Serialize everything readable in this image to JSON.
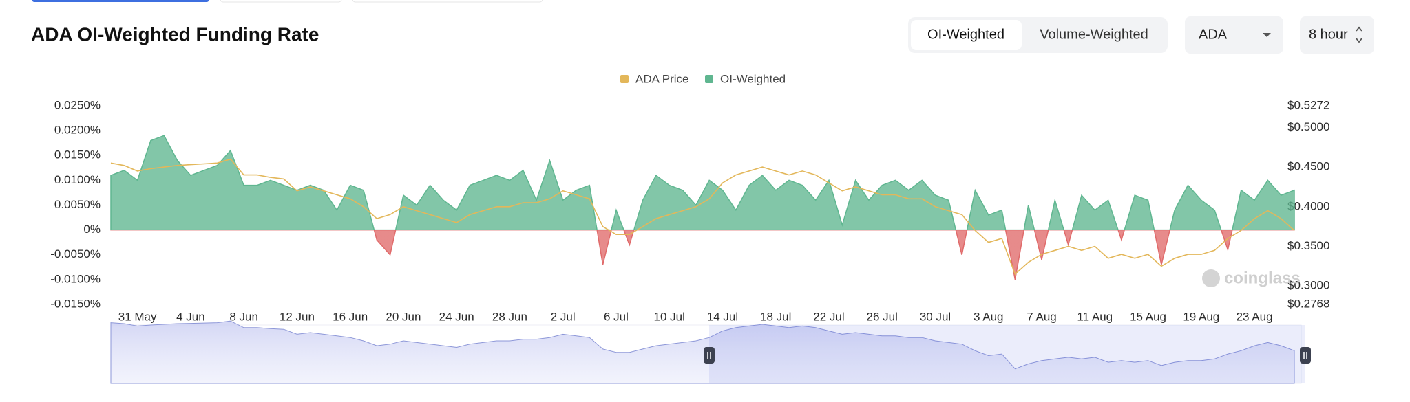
{
  "ui": {
    "title": "ADA OI-Weighted Funding Rate",
    "toggle": [
      "OI-Weighted",
      "Volume-Weighted"
    ],
    "symbol": "ADA",
    "interval": "8 hour",
    "watermark": "coinglass"
  },
  "chart_data": {
    "type": "area",
    "legend": "top",
    "categories": [
      null,
      null,
      "31 May",
      null,
      null,
      null,
      "4 Jun",
      null,
      null,
      null,
      "8 Jun",
      null,
      null,
      null,
      "12 Jun",
      null,
      null,
      null,
      "16 Jun",
      null,
      null,
      null,
      "20 Jun",
      null,
      null,
      null,
      "24 Jun",
      null,
      null,
      null,
      "28 Jun",
      null,
      null,
      null,
      "2 Jul",
      null,
      null,
      null,
      "6 Jul",
      null,
      null,
      null,
      "10 Jul",
      null,
      null,
      null,
      "14 Jul",
      null,
      null,
      null,
      "18 Jul",
      null,
      null,
      null,
      "22 Jul",
      null,
      null,
      null,
      "26 Jul",
      null,
      null,
      null,
      "30 Jul",
      null,
      null,
      null,
      "3 Aug",
      null,
      null,
      null,
      "7 Aug",
      null,
      null,
      null,
      "11 Aug",
      null,
      null,
      null,
      "15 Aug",
      null,
      null,
      null,
      "19 Aug",
      null,
      null,
      null,
      "23 Aug",
      null,
      null,
      null
    ],
    "series": [
      {
        "name": "ADA Price",
        "color": "#e3b75a",
        "type": "line",
        "axis": "y2",
        "values": [
          0.455,
          0.452,
          0.445,
          0.448,
          0.45,
          0.452,
          0.453,
          0.454,
          0.455,
          0.46,
          0.44,
          0.44,
          0.437,
          0.435,
          0.42,
          0.425,
          0.42,
          0.415,
          0.41,
          0.4,
          0.385,
          0.39,
          0.4,
          0.395,
          0.39,
          0.385,
          0.38,
          0.39,
          0.395,
          0.4,
          0.4,
          0.405,
          0.405,
          0.41,
          0.42,
          0.415,
          0.41,
          0.375,
          0.365,
          0.365,
          0.375,
          0.385,
          0.39,
          0.395,
          0.4,
          0.41,
          0.43,
          0.44,
          0.445,
          0.45,
          0.445,
          0.44,
          0.445,
          0.44,
          0.43,
          0.42,
          0.425,
          0.42,
          0.415,
          0.415,
          0.41,
          0.41,
          0.4,
          0.395,
          0.39,
          0.37,
          0.355,
          0.36,
          0.315,
          0.33,
          0.34,
          0.345,
          0.35,
          0.345,
          0.35,
          0.335,
          0.34,
          0.335,
          0.34,
          0.325,
          0.335,
          0.34,
          0.34,
          0.345,
          0.36,
          0.37,
          0.385,
          0.395,
          0.385,
          0.37
        ]
      },
      {
        "name": "OI-Weighted",
        "color": "#5fb690",
        "negative_color": "#e06a6a",
        "type": "area",
        "values": [
          0.011,
          0.012,
          0.01,
          0.018,
          0.019,
          0.014,
          0.011,
          0.012,
          0.013,
          0.016,
          0.009,
          0.009,
          0.01,
          0.009,
          0.008,
          0.009,
          0.008,
          0.004,
          0.009,
          0.008,
          -0.002,
          -0.005,
          0.007,
          0.005,
          0.009,
          0.006,
          0.004,
          0.009,
          0.01,
          0.011,
          0.01,
          0.012,
          0.006,
          0.014,
          0.006,
          0.008,
          0.009,
          -0.007,
          0.004,
          -0.003,
          0.006,
          0.011,
          0.009,
          0.008,
          0.005,
          0.01,
          0.008,
          0.004,
          0.009,
          0.011,
          0.008,
          0.01,
          0.009,
          0.006,
          0.01,
          0.001,
          0.01,
          0.006,
          0.009,
          0.01,
          0.008,
          0.01,
          0.007,
          0.006,
          -0.005,
          0.008,
          0.003,
          0.004,
          -0.01,
          0.005,
          -0.006,
          0.006,
          -0.003,
          0.007,
          0.004,
          0.006,
          -0.002,
          0.007,
          0.006,
          -0.007,
          0.004,
          0.009,
          0.006,
          0.004,
          -0.004,
          0.008,
          0.006,
          0.01,
          0.007,
          0.008
        ]
      }
    ],
    "ylim": [
      -0.015,
      0.025
    ],
    "yticks": [
      {
        "value": 0.025,
        "label": "0.0250%"
      },
      {
        "value": 0.02,
        "label": "0.0200%"
      },
      {
        "value": 0.015,
        "label": "0.0150%"
      },
      {
        "value": 0.01,
        "label": "0.0100%"
      },
      {
        "value": 0.005,
        "label": "0.0050%"
      },
      {
        "value": 0,
        "label": "0%"
      },
      {
        "value": -0.005,
        "label": "-0.0050%"
      },
      {
        "value": -0.01,
        "label": "-0.0100%"
      },
      {
        "value": -0.015,
        "label": "-0.0150%"
      }
    ],
    "y2lim": [
      0.2768,
      0.5272
    ],
    "y2ticks": [
      {
        "value": 0.5272,
        "label": "$0.5272"
      },
      {
        "value": 0.5,
        "label": "$0.5000"
      },
      {
        "value": 0.45,
        "label": "$0.4500"
      },
      {
        "value": 0.4,
        "label": "$0.4000"
      },
      {
        "value": 0.35,
        "label": "$0.3500"
      },
      {
        "value": 0.3,
        "label": "$0.3000"
      },
      {
        "value": 0.2768,
        "label": "$0.2768"
      }
    ]
  }
}
